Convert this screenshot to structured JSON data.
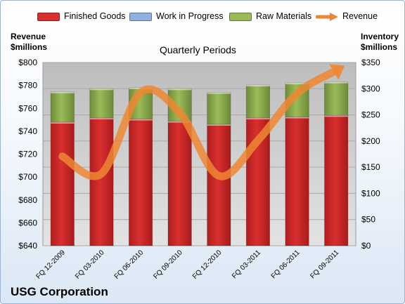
{
  "company": "USG Corporation",
  "colors": {
    "finished_goods": "#d92f2f",
    "work_in_progress": "#8eb1e0",
    "raw_materials": "#9bbb59",
    "revenue": "#ee8733",
    "plot_bg": "#cfcfcf"
  },
  "chart_data": {
    "type": "bar",
    "title": "Quarterly Periods",
    "stacked": true,
    "categories": [
      "FQ 12-2009",
      "FQ 03-2010",
      "FQ 06-2010",
      "FQ 09-2010",
      "FQ 12-2010",
      "FQ 03-2011",
      "FQ 06-2011",
      "FQ 09-2011"
    ],
    "series": [
      {
        "name": "Finished Goods",
        "axis": "right",
        "kind": "bar",
        "values": [
          236,
          244,
          242,
          238,
          232,
          244,
          246,
          249
        ]
      },
      {
        "name": "Work in Progress",
        "axis": "right",
        "kind": "bar",
        "values": [
          0,
          0,
          0,
          0,
          0,
          0,
          0,
          0
        ]
      },
      {
        "name": "Raw Materials",
        "axis": "right",
        "kind": "bar",
        "values": [
          58,
          56,
          60,
          62,
          61,
          63,
          65,
          64
        ]
      },
      {
        "name": "Revenue",
        "axis": "left",
        "kind": "line",
        "values": [
          718,
          703,
          774,
          756,
          701,
          732,
          773,
          793
        ]
      }
    ],
    "ylabel_left": "Revenue\n$millions",
    "ylabel_right": "Inventory\n$millions",
    "ylim_left": [
      640,
      800
    ],
    "ylim_right": [
      0,
      350
    ],
    "yticks_left": [
      "$640",
      "$660",
      "$680",
      "$700",
      "$720",
      "$740",
      "$760",
      "$780",
      "$800"
    ],
    "yticks_right": [
      "$0",
      "$50",
      "$100",
      "$150",
      "$200",
      "$250",
      "$300",
      "$350"
    ],
    "grid": true,
    "legend": "top"
  }
}
